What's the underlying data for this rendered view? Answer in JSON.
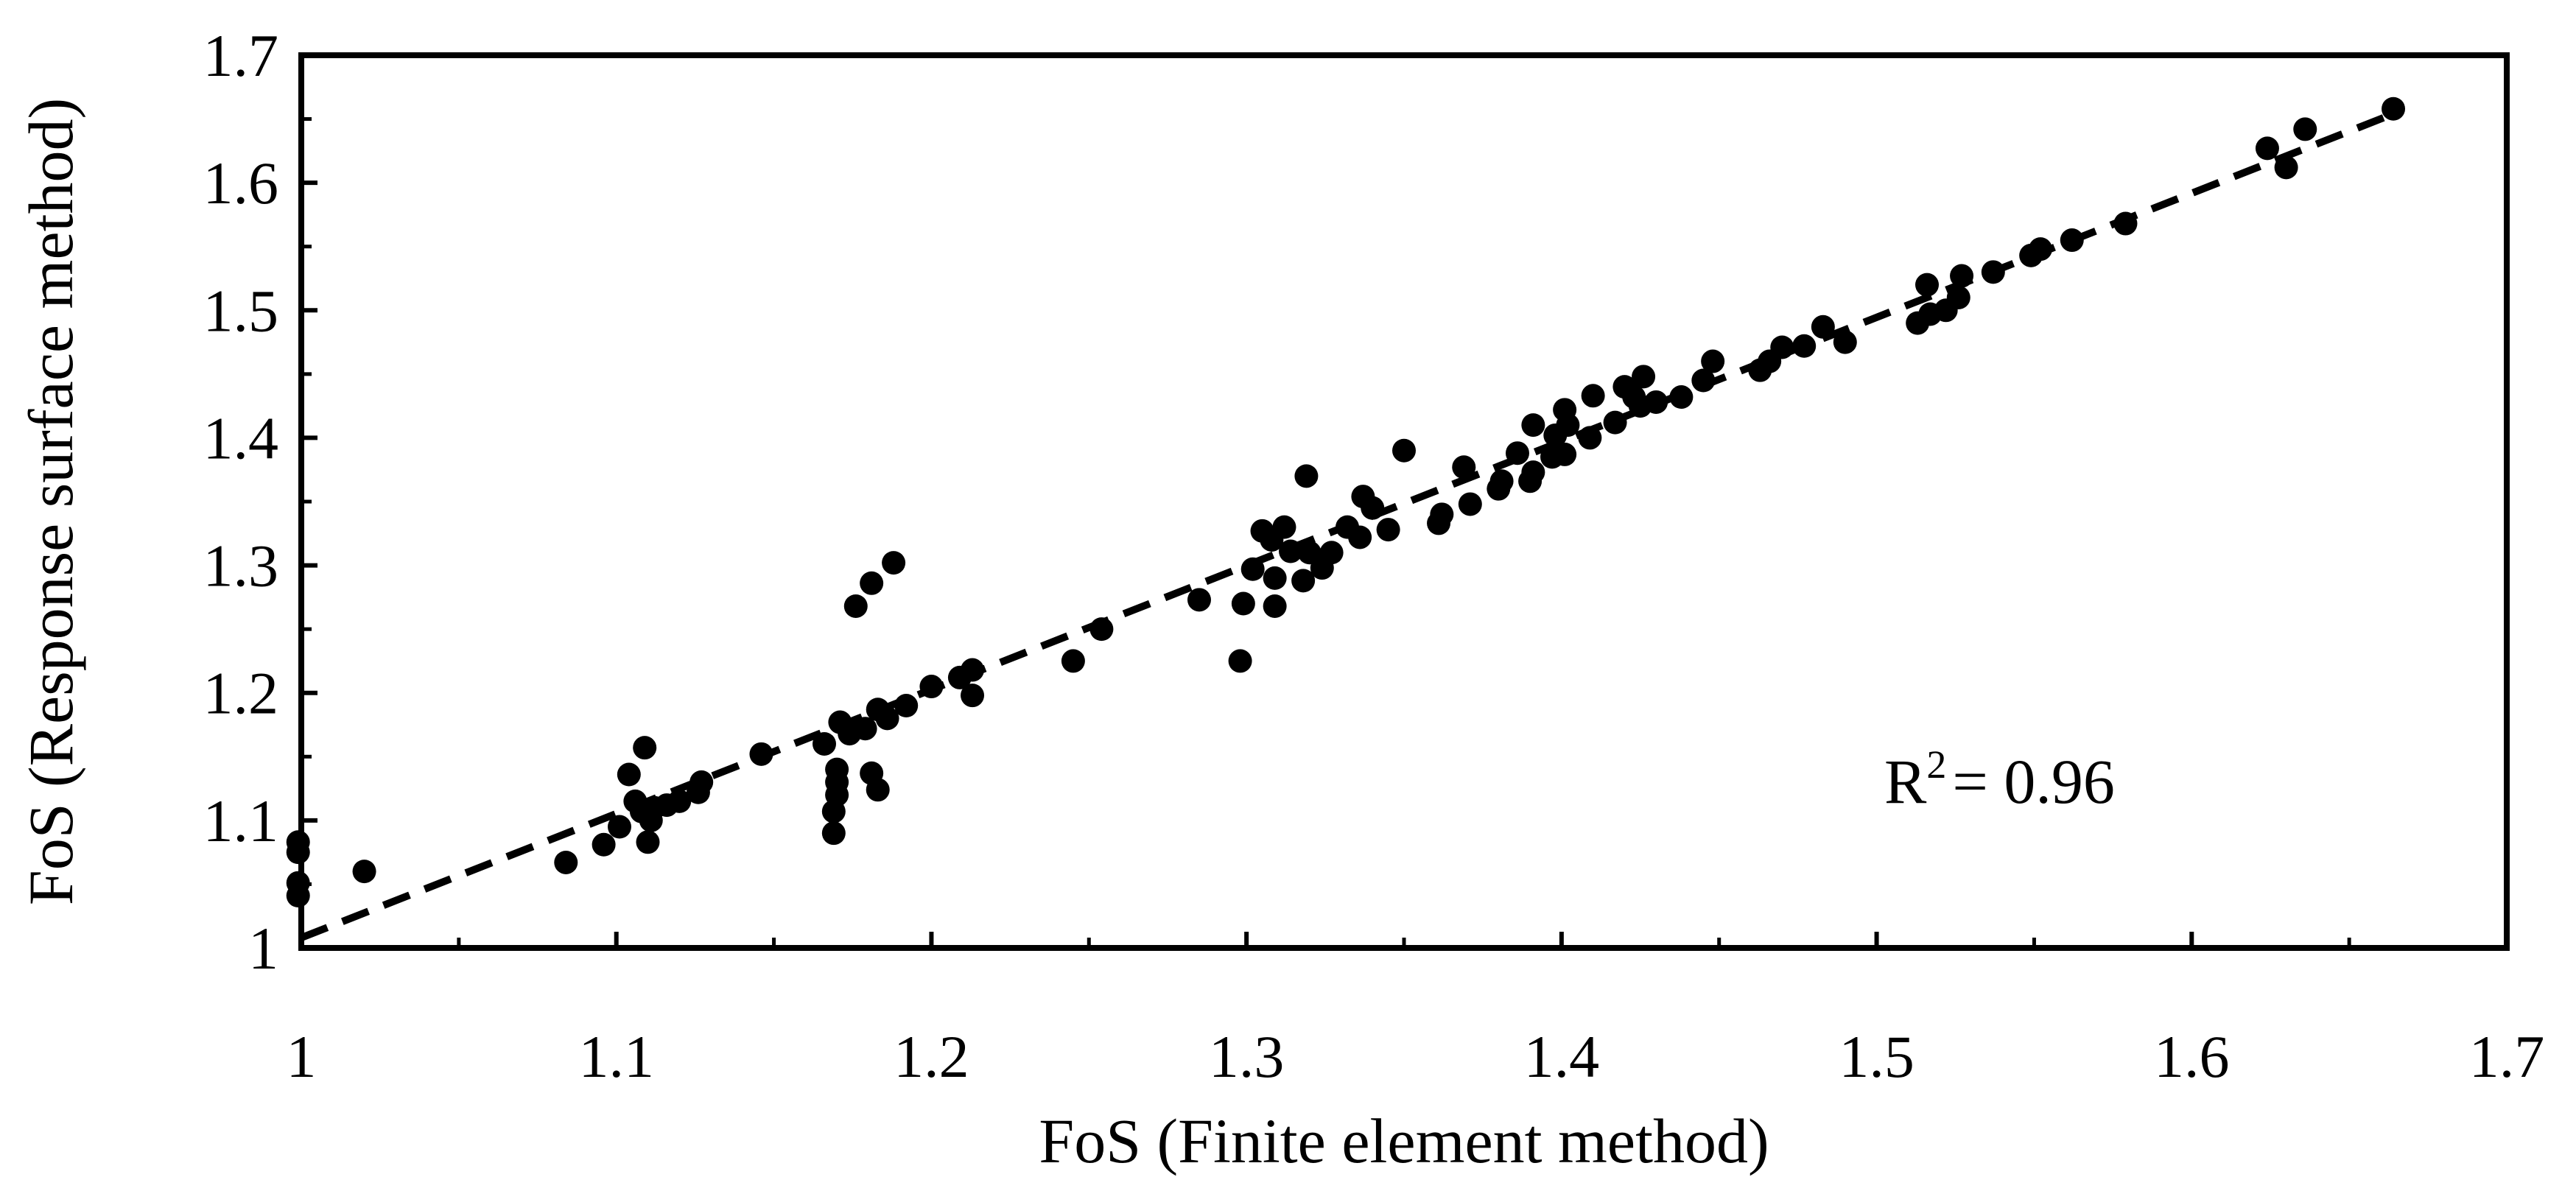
{
  "chart_data": {
    "type": "scatter",
    "title": "",
    "xlabel": "FoS (Finite element method)",
    "ylabel": "FoS (Response surface method)",
    "xlim": [
      1,
      1.7
    ],
    "ylim": [
      1,
      1.7
    ],
    "x_ticks": [
      "1",
      "1.1",
      "1.2",
      "1.3",
      "1.4",
      "1.5",
      "1.6",
      "1.7"
    ],
    "y_ticks": [
      "1",
      "1.1",
      "1.2",
      "1.3",
      "1.4",
      "1.5",
      "1.6",
      "1.7"
    ],
    "grid": false,
    "legend": "none",
    "annotation": {
      "r_label": "R",
      "r_sup": "2",
      "r_value": "= 0.96"
    },
    "trendline": {
      "style": "dashed",
      "x": [
        1.0,
        1.665
      ],
      "y": [
        1.008,
        1.655
      ]
    },
    "colors": {
      "points": "#000000",
      "trendline": "#000000",
      "frame": "#000000"
    },
    "points": [
      [
        0.999,
        1.083
      ],
      [
        0.999,
        1.075
      ],
      [
        0.999,
        1.051
      ],
      [
        0.999,
        1.041
      ],
      [
        1.02,
        1.06
      ],
      [
        1.084,
        1.067
      ],
      [
        1.096,
        1.081
      ],
      [
        1.101,
        1.095
      ],
      [
        1.104,
        1.136
      ],
      [
        1.106,
        1.115
      ],
      [
        1.108,
        1.107
      ],
      [
        1.109,
        1.157
      ],
      [
        1.11,
        1.083
      ],
      [
        1.111,
        1.1
      ],
      [
        1.112,
        1.11
      ],
      [
        1.116,
        1.112
      ],
      [
        1.12,
        1.115
      ],
      [
        1.126,
        1.122
      ],
      [
        1.127,
        1.13
      ],
      [
        1.146,
        1.152
      ],
      [
        1.166,
        1.16
      ],
      [
        1.169,
        1.09
      ],
      [
        1.169,
        1.107
      ],
      [
        1.17,
        1.12
      ],
      [
        1.17,
        1.13
      ],
      [
        1.17,
        1.14
      ],
      [
        1.171,
        1.177
      ],
      [
        1.174,
        1.168
      ],
      [
        1.176,
        1.268
      ],
      [
        1.179,
        1.172
      ],
      [
        1.181,
        1.137
      ],
      [
        1.181,
        1.286
      ],
      [
        1.183,
        1.187
      ],
      [
        1.183,
        1.124
      ],
      [
        1.186,
        1.18
      ],
      [
        1.188,
        1.302
      ],
      [
        1.192,
        1.19
      ],
      [
        1.2,
        1.205
      ],
      [
        1.209,
        1.212
      ],
      [
        1.213,
        1.218
      ],
      [
        1.213,
        1.198
      ],
      [
        1.245,
        1.225
      ],
      [
        1.254,
        1.25
      ],
      [
        1.285,
        1.273
      ],
      [
        1.298,
        1.225
      ],
      [
        1.299,
        1.27
      ],
      [
        1.302,
        1.297
      ],
      [
        1.305,
        1.327
      ],
      [
        1.308,
        1.32
      ],
      [
        1.309,
        1.268
      ],
      [
        1.309,
        1.29
      ],
      [
        1.312,
        1.33
      ],
      [
        1.314,
        1.311
      ],
      [
        1.318,
        1.288
      ],
      [
        1.319,
        1.37
      ],
      [
        1.32,
        1.31
      ],
      [
        1.324,
        1.298
      ],
      [
        1.327,
        1.31
      ],
      [
        1.332,
        1.33
      ],
      [
        1.336,
        1.322
      ],
      [
        1.337,
        1.354
      ],
      [
        1.34,
        1.345
      ],
      [
        1.345,
        1.328
      ],
      [
        1.35,
        1.39
      ],
      [
        1.361,
        1.333
      ],
      [
        1.362,
        1.34
      ],
      [
        1.369,
        1.377
      ],
      [
        1.371,
        1.348
      ],
      [
        1.38,
        1.36
      ],
      [
        1.381,
        1.366
      ],
      [
        1.386,
        1.388
      ],
      [
        1.39,
        1.366
      ],
      [
        1.391,
        1.373
      ],
      [
        1.391,
        1.41
      ],
      [
        1.397,
        1.385
      ],
      [
        1.398,
        1.402
      ],
      [
        1.401,
        1.422
      ],
      [
        1.401,
        1.387
      ],
      [
        1.402,
        1.41
      ],
      [
        1.409,
        1.4
      ],
      [
        1.41,
        1.433
      ],
      [
        1.417,
        1.412
      ],
      [
        1.42,
        1.44
      ],
      [
        1.423,
        1.432
      ],
      [
        1.425,
        1.425
      ],
      [
        1.426,
        1.448
      ],
      [
        1.43,
        1.428
      ],
      [
        1.438,
        1.432
      ],
      [
        1.445,
        1.445
      ],
      [
        1.448,
        1.46
      ],
      [
        1.463,
        1.453
      ],
      [
        1.466,
        1.46
      ],
      [
        1.47,
        1.471
      ],
      [
        1.477,
        1.472
      ],
      [
        1.483,
        1.487
      ],
      [
        1.49,
        1.475
      ],
      [
        1.513,
        1.49
      ],
      [
        1.516,
        1.52
      ],
      [
        1.517,
        1.497
      ],
      [
        1.522,
        1.5
      ],
      [
        1.526,
        1.51
      ],
      [
        1.527,
        1.527
      ],
      [
        1.537,
        1.53
      ],
      [
        1.549,
        1.543
      ],
      [
        1.552,
        1.548
      ],
      [
        1.562,
        1.555
      ],
      [
        1.579,
        1.568
      ],
      [
        1.624,
        1.627
      ],
      [
        1.63,
        1.612
      ],
      [
        1.636,
        1.642
      ],
      [
        1.664,
        1.658
      ]
    ]
  }
}
